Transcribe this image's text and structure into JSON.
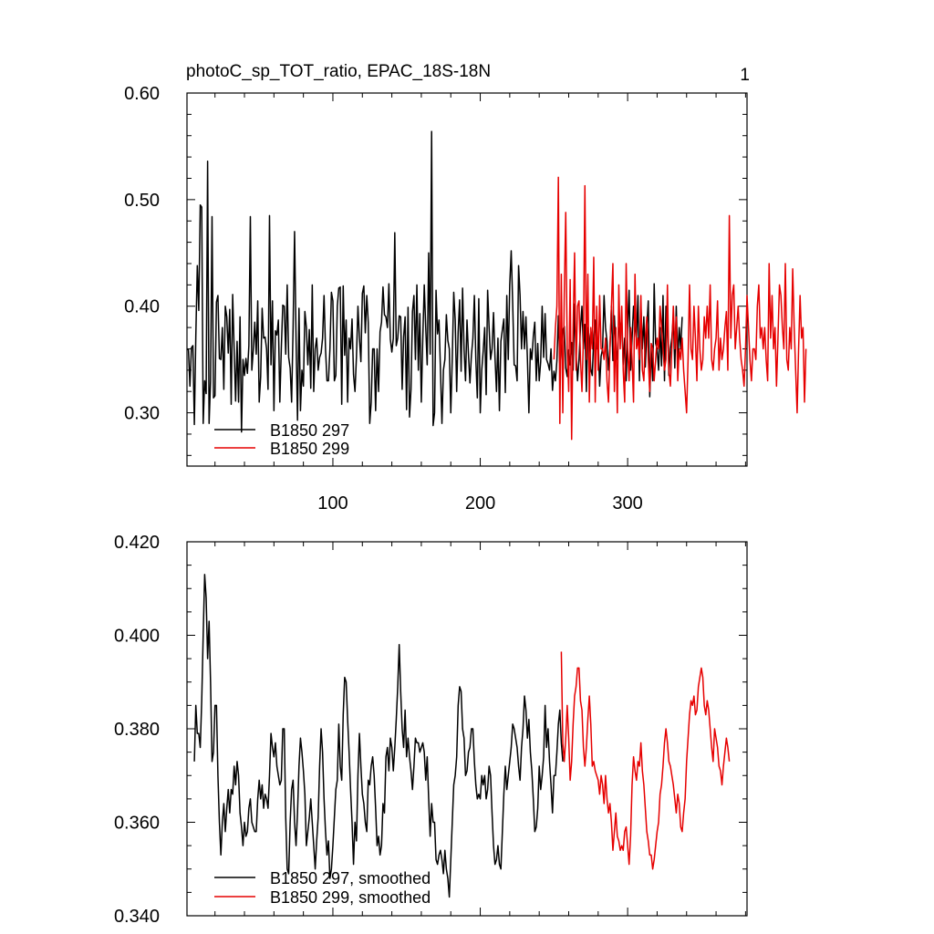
{
  "colors": {
    "series_297": "#000000",
    "series_299": "#e60000",
    "axis": "#000000",
    "background": "#ffffff"
  },
  "chart_data": [
    {
      "type": "line",
      "title": "photoC_sp_TOT_ratio, EPAC_18S-18N",
      "right_label": "1",
      "xlabel": "",
      "ylabel": "",
      "xlim": [
        1,
        381
      ],
      "ylim": [
        0.25,
        0.6
      ],
      "x_ticks": [
        100,
        200,
        300
      ],
      "x_tick_labels": [
        "100",
        "200",
        "300"
      ],
      "y_ticks": [
        0.3,
        0.4,
        0.5,
        0.6
      ],
      "y_tick_labels": [
        "0.30",
        "0.40",
        "0.50",
        "0.60"
      ],
      "grid": false,
      "legend_position": "bottom-left",
      "series": [
        {
          "name": "B1850 297",
          "color": "#000000",
          "x_start": 1,
          "values": [
            0.36,
            0.359,
            0.325,
            0.361,
            0.363,
            0.289,
            0.372,
            0.438,
            0.396,
            0.495,
            0.493,
            0.29,
            0.33,
            0.318,
            0.536,
            0.29,
            0.33,
            0.484,
            0.314,
            0.316,
            0.404,
            0.41,
            0.351,
            0.35,
            0.38,
            0.322,
            0.4,
            0.39,
            0.356,
            0.397,
            0.308,
            0.411,
            0.36,
            0.311,
            0.367,
            0.31,
            0.39,
            0.282,
            0.35,
            0.335,
            0.351,
            0.337,
            0.363,
            0.484,
            0.34,
            0.359,
            0.385,
            0.355,
            0.405,
            0.31,
            0.334,
            0.398,
            0.37,
            0.371,
            0.36,
            0.322,
            0.485,
            0.345,
            0.405,
            0.302,
            0.377,
            0.373,
            0.387,
            0.31,
            0.36,
            0.401,
            0.4,
            0.355,
            0.42,
            0.352,
            0.342,
            0.31,
            0.38,
            0.47,
            0.37,
            0.293,
            0.398,
            0.302,
            0.34,
            0.325,
            0.395,
            0.38,
            0.345,
            0.378,
            0.323,
            0.42,
            0.32,
            0.36,
            0.37,
            0.34,
            0.352,
            0.356,
            0.37,
            0.41,
            0.36,
            0.33,
            0.33,
            0.36,
            0.413,
            0.405,
            0.33,
            0.335,
            0.4,
            0.417,
            0.418,
            0.308,
            0.419,
            0.354,
            0.387,
            0.31,
            0.37,
            0.36,
            0.388,
            0.336,
            0.32,
            0.353,
            0.4,
            0.37,
            0.348,
            0.412,
            0.419,
            0.375,
            0.41,
            0.385,
            0.29,
            0.31,
            0.36,
            0.36,
            0.302,
            0.36,
            0.32,
            0.376,
            0.385,
            0.418,
            0.392,
            0.39,
            0.38,
            0.421,
            0.369,
            0.357,
            0.37,
            0.469,
            0.363,
            0.37,
            0.391,
            0.39,
            0.322,
            0.371,
            0.39,
            0.303,
            0.399,
            0.296,
            0.322,
            0.395,
            0.41,
            0.35,
            0.42,
            0.34,
            0.393,
            0.31,
            0.37,
            0.42,
            0.38,
            0.345,
            0.45,
            0.355,
            0.564,
            0.288,
            0.3,
            0.415,
            0.374,
            0.387,
            0.34,
            0.29,
            0.34,
            0.35,
            0.392,
            0.368,
            0.36,
            0.3,
            0.351,
            0.413,
            0.387,
            0.32,
            0.376,
            0.406,
            0.339,
            0.417,
            0.36,
            0.33,
            0.387,
            0.355,
            0.328,
            0.354,
            0.37,
            0.41,
            0.35,
            0.314,
            0.407,
            0.3,
            0.34,
            0.358,
            0.38,
            0.317,
            0.415,
            0.38,
            0.35,
            0.36,
            0.394,
            0.352,
            0.32,
            0.37,
            0.302,
            0.367,
            0.378,
            0.388,
            0.319,
            0.41,
            0.35,
            0.42,
            0.452,
            0.403,
            0.345,
            0.344,
            0.33,
            0.438,
            0.41,
            0.36,
            0.395,
            0.36,
            0.39,
            0.35,
            0.3,
            0.36,
            0.35,
            0.372,
            0.385,
            0.33,
            0.365,
            0.33,
            0.348,
            0.4,
            0.352,
            0.393,
            0.35,
            0.346,
            0.34,
            0.36,
            0.321,
            0.339,
            0.33,
            0.349,
            0.391,
            0.345,
            0.36,
            0.378,
            0.381,
            0.342,
            0.334,
            0.359,
            0.345,
            0.366,
            0.34,
            0.402,
            0.356,
            0.33,
            0.35,
            0.38,
            0.4,
            0.36,
            0.383,
            0.32,
            0.38,
            0.37,
            0.341,
            0.335,
            0.37,
            0.387,
            0.36,
            0.368,
            0.325,
            0.353,
            0.36,
            0.41,
            0.38,
            0.367,
            0.34,
            0.36,
            0.4,
            0.349,
            0.391,
            0.36,
            0.35,
            0.38,
            0.38,
            0.387,
            0.345,
            0.37,
            0.33,
            0.382,
            0.415,
            0.34,
            0.37,
            0.4,
            0.38,
            0.37,
            0.41,
            0.33,
            0.4,
            0.36,
            0.39,
            0.343,
            0.38,
            0.405,
            0.315,
            0.36,
            0.33,
            0.421,
            0.365,
            0.36,
            0.34,
            0.38,
            0.344,
            0.41,
            0.33,
            0.4,
            0.39,
            0.335,
            0.36,
            0.37,
            0.39,
            0.342,
            0.4,
            0.35,
            0.38,
            0.36,
            0.39
          ]
        },
        {
          "name": "B1850 299",
          "color": "#e60000",
          "x_start": 250,
          "values": [
            0.35,
            0.38,
            0.4,
            0.521,
            0.29,
            0.43,
            0.3,
            0.41,
            0.488,
            0.36,
            0.32,
            0.425,
            0.275,
            0.38,
            0.45,
            0.34,
            0.4,
            0.405,
            0.35,
            0.32,
            0.37,
            0.513,
            0.35,
            0.43,
            0.31,
            0.38,
            0.36,
            0.446,
            0.31,
            0.4,
            0.34,
            0.41,
            0.36,
            0.36,
            0.35,
            0.37,
            0.33,
            0.31,
            0.36,
            0.4,
            0.44,
            0.32,
            0.38,
            0.3,
            0.42,
            0.36,
            0.4,
            0.34,
            0.31,
            0.44,
            0.36,
            0.33,
            0.38,
            0.35,
            0.31,
            0.43,
            0.36,
            0.37,
            0.35,
            0.41,
            0.34,
            0.33,
            0.37,
            0.39,
            0.35,
            0.32,
            0.365,
            0.36,
            0.33,
            0.35,
            0.37,
            0.36,
            0.4,
            0.38,
            0.36,
            0.34,
            0.35,
            0.42,
            0.34,
            0.325,
            0.36,
            0.4,
            0.36,
            0.39,
            0.33,
            0.36,
            0.35,
            0.37,
            0.34,
            0.32,
            0.3,
            0.35,
            0.42,
            0.36,
            0.35,
            0.4,
            0.37,
            0.33,
            0.4,
            0.36,
            0.34,
            0.35,
            0.39,
            0.37,
            0.4,
            0.37,
            0.42,
            0.35,
            0.34,
            0.36,
            0.37,
            0.405,
            0.34,
            0.37,
            0.35,
            0.36,
            0.38,
            0.395,
            0.34,
            0.485,
            0.37,
            0.41,
            0.42,
            0.36,
            0.38,
            0.4,
            0.37,
            0.35,
            0.34,
            0.325,
            0.36,
            0.41,
            0.38,
            0.35,
            0.33,
            0.36,
            0.36,
            0.35,
            0.4,
            0.42,
            0.37,
            0.38,
            0.36,
            0.38,
            0.35,
            0.33,
            0.44,
            0.37,
            0.41,
            0.36,
            0.38,
            0.325,
            0.37,
            0.42,
            0.41,
            0.38,
            0.36,
            0.44,
            0.35,
            0.34,
            0.38,
            0.36,
            0.435,
            0.38,
            0.34,
            0.3,
            0.36,
            0.41,
            0.37,
            0.38,
            0.31,
            0.36
          ]
        }
      ]
    },
    {
      "type": "line",
      "title": "",
      "xlabel": "",
      "ylabel": "",
      "xlim": [
        1,
        381
      ],
      "ylim": [
        0.34,
        0.42
      ],
      "x_ticks": [
        100,
        200,
        300
      ],
      "y_ticks": [
        0.34,
        0.36,
        0.38,
        0.4,
        0.42
      ],
      "y_tick_labels": [
        "0.340",
        "0.360",
        "0.380",
        "0.400",
        "0.420"
      ],
      "grid": false,
      "legend_position": "bottom-left",
      "series": [
        {
          "name": "B1850 297, smoothed",
          "color": "#000000",
          "x_start": 6,
          "values": [
            0.373,
            0.385,
            0.379,
            0.379,
            0.376,
            0.386,
            0.4,
            0.413,
            0.408,
            0.395,
            0.403,
            0.39,
            0.373,
            0.375,
            0.385,
            0.385,
            0.37,
            0.36,
            0.353,
            0.36,
            0.364,
            0.358,
            0.363,
            0.367,
            0.362,
            0.367,
            0.366,
            0.372,
            0.368,
            0.373,
            0.37,
            0.362,
            0.359,
            0.355,
            0.36,
            0.357,
            0.358,
            0.363,
            0.365,
            0.36,
            0.359,
            0.358,
            0.358,
            0.365,
            0.369,
            0.365,
            0.368,
            0.363,
            0.366,
            0.365,
            0.363,
            0.37,
            0.379,
            0.376,
            0.374,
            0.377,
            0.372,
            0.37,
            0.368,
            0.369,
            0.38,
            0.38,
            0.361,
            0.35,
            0.349,
            0.36,
            0.367,
            0.369,
            0.36,
            0.355,
            0.362,
            0.372,
            0.378,
            0.375,
            0.371,
            0.366,
            0.355,
            0.358,
            0.361,
            0.365,
            0.36,
            0.355,
            0.35,
            0.356,
            0.361,
            0.372,
            0.38,
            0.375,
            0.365,
            0.358,
            0.353,
            0.356,
            0.348,
            0.35,
            0.355,
            0.361,
            0.367,
            0.369,
            0.381,
            0.372,
            0.369,
            0.383,
            0.391,
            0.39,
            0.382,
            0.375,
            0.367,
            0.36,
            0.351,
            0.36,
            0.356,
            0.37,
            0.379,
            0.372,
            0.366,
            0.364,
            0.36,
            0.358,
            0.369,
            0.368,
            0.372,
            0.374,
            0.37,
            0.363,
            0.355,
            0.357,
            0.353,
            0.355,
            0.364,
            0.362,
            0.374,
            0.376,
            0.371,
            0.378,
            0.376,
            0.371,
            0.376,
            0.382,
            0.389,
            0.398,
            0.388,
            0.38,
            0.376,
            0.384,
            0.374,
            0.378,
            0.374,
            0.371,
            0.367,
            0.372,
            0.378,
            0.377,
            0.377,
            0.375,
            0.376,
            0.377,
            0.375,
            0.369,
            0.374,
            0.365,
            0.357,
            0.364,
            0.36,
            0.36,
            0.352,
            0.351,
            0.353,
            0.354,
            0.352,
            0.349,
            0.354,
            0.35,
            0.348,
            0.344,
            0.352,
            0.36,
            0.368,
            0.37,
            0.374,
            0.385,
            0.389,
            0.388,
            0.38,
            0.378,
            0.37,
            0.371,
            0.375,
            0.376,
            0.38,
            0.38,
            0.373,
            0.368,
            0.365,
            0.366,
            0.365,
            0.37,
            0.368,
            0.37,
            0.365,
            0.367,
            0.372,
            0.37,
            0.362,
            0.355,
            0.351,
            0.352,
            0.355,
            0.351,
            0.35,
            0.358,
            0.366,
            0.372,
            0.367,
            0.37,
            0.373,
            0.376,
            0.381,
            0.38,
            0.378,
            0.376,
            0.372,
            0.369,
            0.376,
            0.38,
            0.387,
            0.384,
            0.378,
            0.382,
            0.375,
            0.371,
            0.365,
            0.358,
            0.359,
            0.363,
            0.372,
            0.367,
            0.37,
            0.374,
            0.385,
            0.376,
            0.38,
            0.373,
            0.368,
            0.362,
            0.37,
            0.37,
            0.375,
            0.381,
            0.384,
            0.377,
            0.373
          ]
        },
        {
          "name": "B1850 299, smoothed",
          "color": "#e60000",
          "x_start": 255,
          "values": [
            0.3965,
            0.377,
            0.373,
            0.378,
            0.385,
            0.378,
            0.369,
            0.373,
            0.381,
            0.387,
            0.389,
            0.393,
            0.393,
            0.386,
            0.384,
            0.376,
            0.372,
            0.376,
            0.382,
            0.387,
            0.381,
            0.372,
            0.373,
            0.371,
            0.37,
            0.369,
            0.366,
            0.37,
            0.368,
            0.364,
            0.37,
            0.365,
            0.362,
            0.364,
            0.36,
            0.354,
            0.358,
            0.362,
            0.357,
            0.356,
            0.354,
            0.355,
            0.354,
            0.358,
            0.359,
            0.355,
            0.351,
            0.357,
            0.368,
            0.374,
            0.371,
            0.369,
            0.373,
            0.372,
            0.377,
            0.371,
            0.368,
            0.363,
            0.358,
            0.356,
            0.353,
            0.353,
            0.35,
            0.352,
            0.355,
            0.358,
            0.36,
            0.366,
            0.368,
            0.372,
            0.377,
            0.38,
            0.377,
            0.373,
            0.372,
            0.37,
            0.368,
            0.365,
            0.362,
            0.366,
            0.364,
            0.359,
            0.358,
            0.362,
            0.365,
            0.373,
            0.378,
            0.383,
            0.386,
            0.385,
            0.387,
            0.383,
            0.384,
            0.389,
            0.391,
            0.393,
            0.391,
            0.385,
            0.383,
            0.386,
            0.384,
            0.38,
            0.376,
            0.373,
            0.38,
            0.378,
            0.376,
            0.372,
            0.371,
            0.368,
            0.372,
            0.375,
            0.378,
            0.376,
            0.373
          ]
        }
      ]
    }
  ]
}
